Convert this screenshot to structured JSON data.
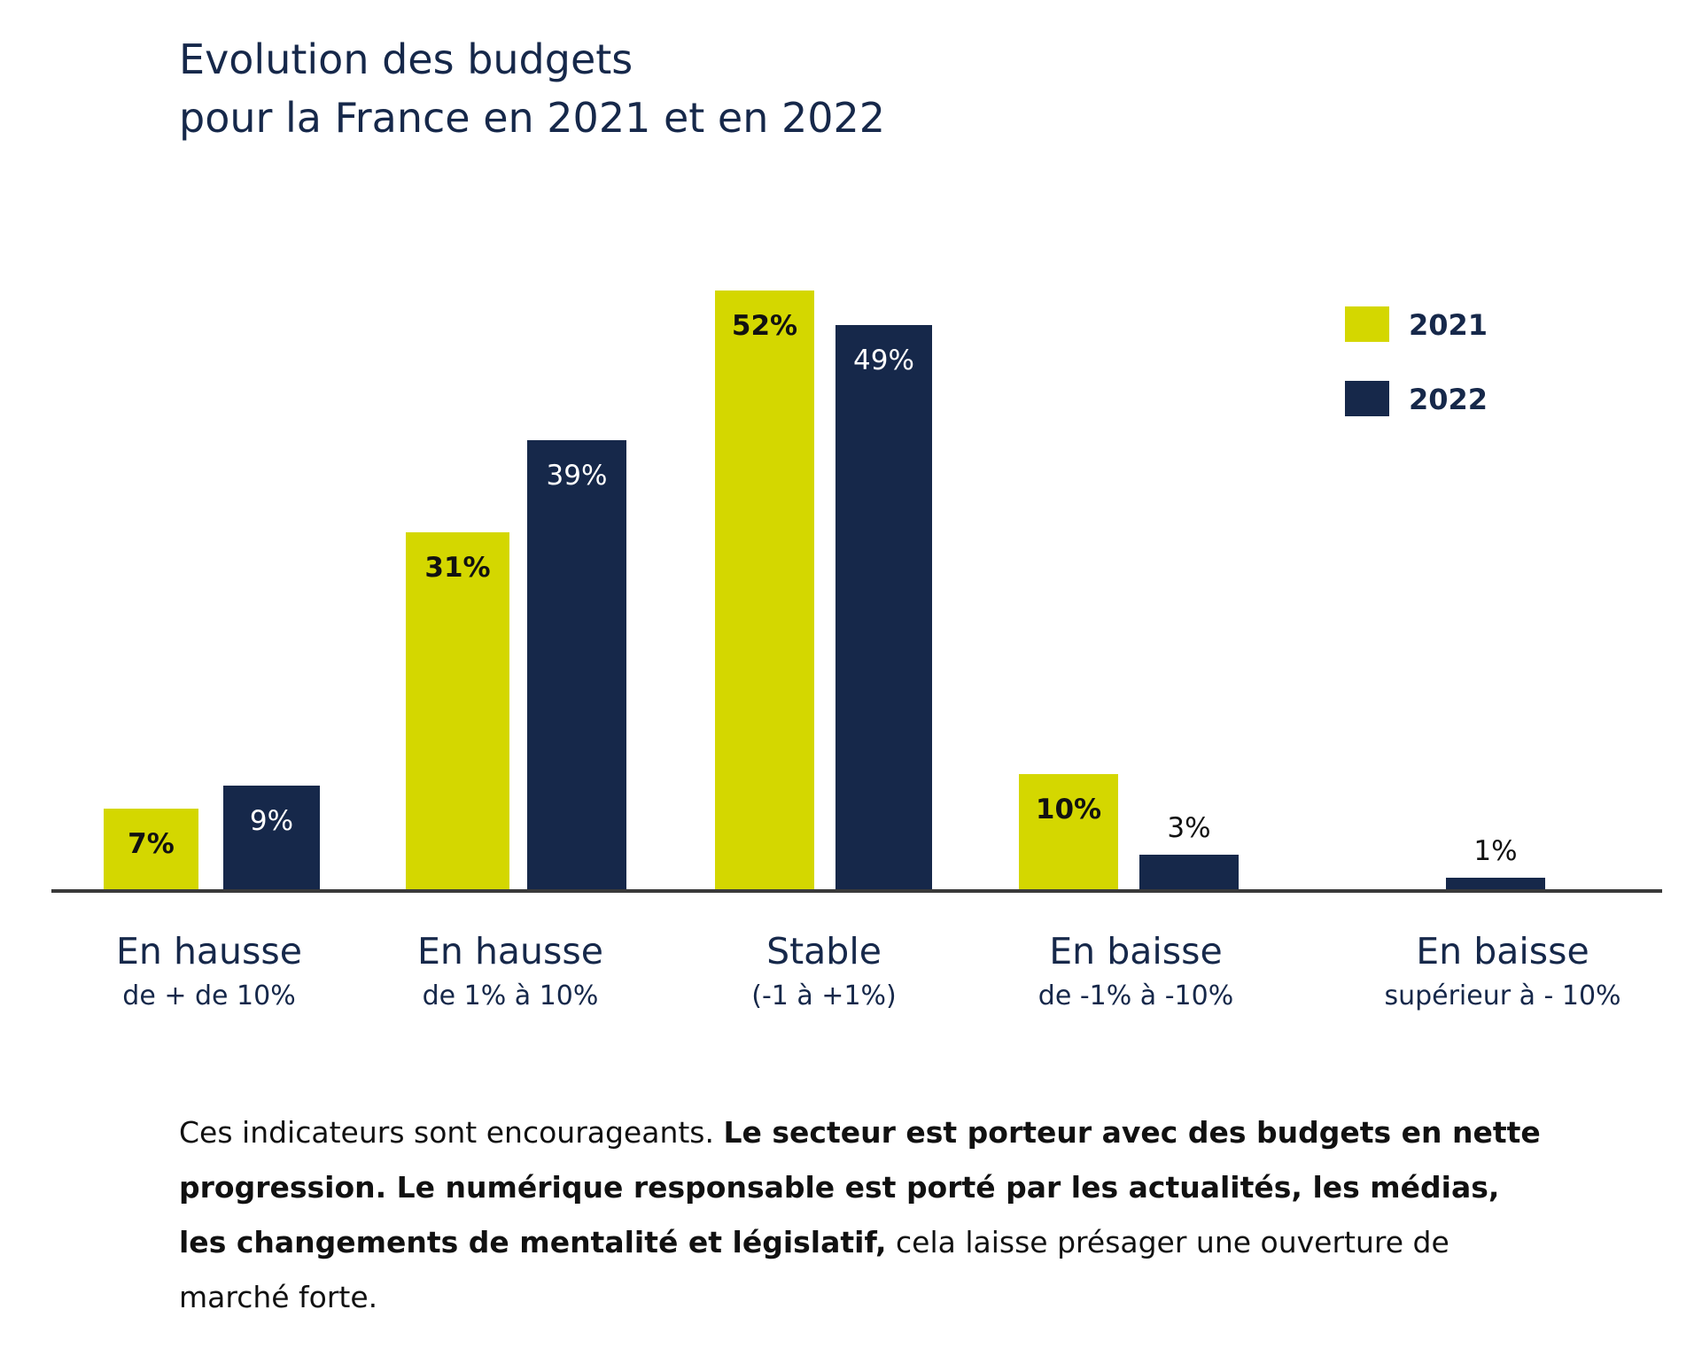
{
  "chart_data": {
    "type": "bar",
    "title_lines": [
      "Evolution des budgets",
      "pour la France en 2021 et en 2022"
    ],
    "categories": [
      {
        "main": "En hausse",
        "sub": "de + de 10%"
      },
      {
        "main": "En hausse",
        "sub": "de 1% à 10%"
      },
      {
        "main": "Stable",
        "sub": "(-1 à +1%)"
      },
      {
        "main": "En baisse",
        "sub": "de -1% à -10%"
      },
      {
        "main": "En baisse",
        "sub": "supérieur à - 10%"
      }
    ],
    "series": [
      {
        "name": "2021",
        "color": "#d4d700",
        "values": [
          7,
          31,
          52,
          10,
          null
        ],
        "labels": [
          "7%",
          "31%",
          "52%",
          "10%",
          ""
        ]
      },
      {
        "name": "2022",
        "color": "#16284a",
        "values": [
          9,
          39,
          49,
          3,
          1
        ],
        "labels": [
          "9%",
          "39%",
          "49%",
          "3%",
          "1%"
        ]
      }
    ],
    "unit": "%",
    "ylim": [
      0,
      52
    ],
    "legend_position": "top-right",
    "grid": false
  },
  "caption": {
    "part1": "Ces indicateurs sont encourageants. ",
    "part2": "Le secteur est porteur avec des budgets en nette progression. Le numérique responsable est porté par les actualités, les médias, les changements de mentalité et législatif,",
    "part3": " cela laisse présager une ouverture de marché forte."
  }
}
